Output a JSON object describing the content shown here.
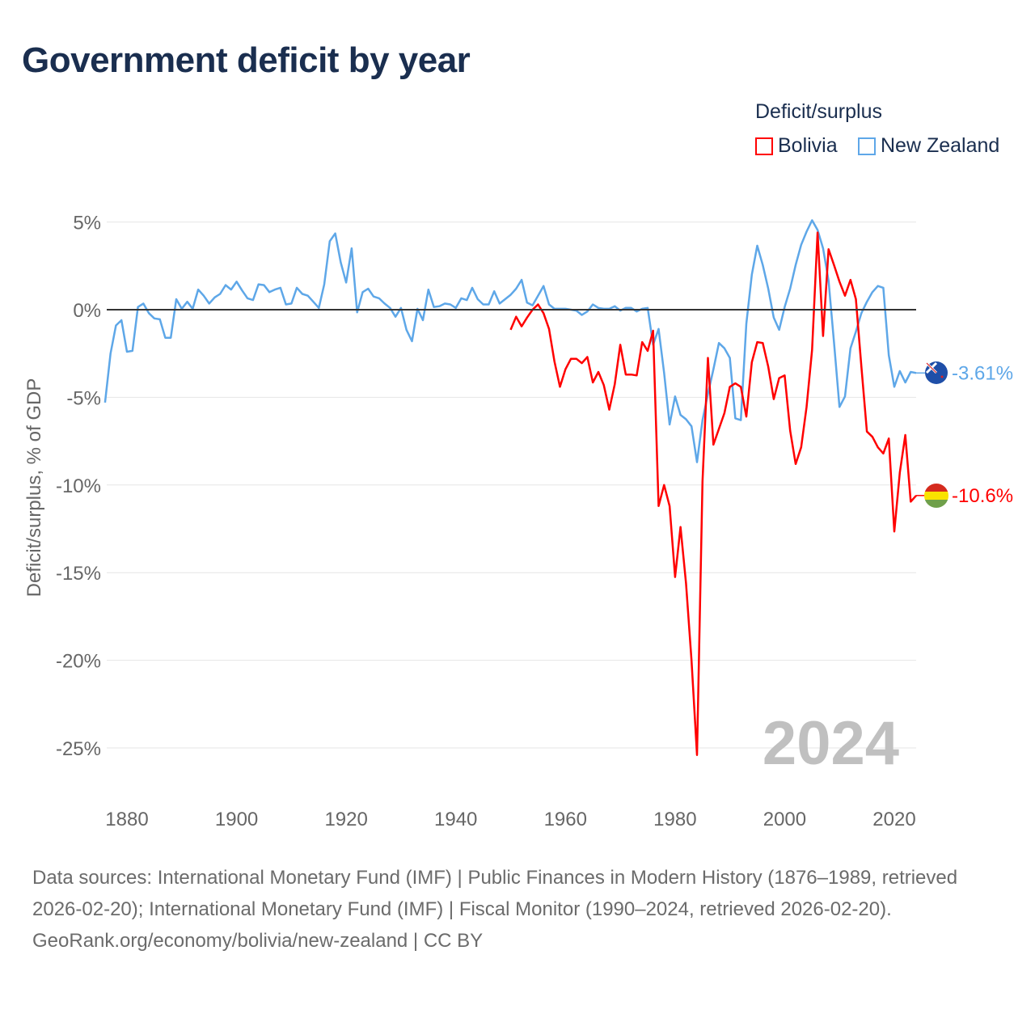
{
  "title": "Government deficit by year",
  "legend": {
    "title": "Deficit/surplus",
    "items": [
      {
        "name": "Bolivia",
        "color": "#ff0000"
      },
      {
        "name": "New Zealand",
        "color": "#5ea7e8"
      }
    ]
  },
  "year_watermark": "2024",
  "footer": {
    "sources": "Data sources: International Monetary Fund (IMF) | Public Finances in Modern History (1876–1989, retrieved 2026-02-20); International Monetary Fund (IMF) | Fiscal Monitor (1990–2024, retrieved 2026-02-20).",
    "credit": "GeoRank.org/economy/bolivia/new-zealand | CC BY"
  },
  "chart_data": {
    "type": "line",
    "title": "Government deficit by year",
    "ylabel": "Deficit/surplus, % of GDP",
    "xlabel": "",
    "xlim": [
      1876,
      2024
    ],
    "ylim": [
      -25,
      5
    ],
    "yticks": [
      5,
      0,
      -5,
      -10,
      -15,
      -20,
      -25
    ],
    "ytick_labels": [
      "5%",
      "0%",
      "-5%",
      "-10%",
      "-15%",
      "-20%",
      "-25%"
    ],
    "xticks": [
      1880,
      1900,
      1920,
      1940,
      1960,
      1980,
      2000,
      2020
    ],
    "xtick_labels": [
      "1880",
      "1900",
      "1920",
      "1940",
      "1960",
      "1980",
      "2000",
      "2020"
    ],
    "grid": true,
    "legend_position": "top-right",
    "series": [
      {
        "name": "New Zealand",
        "color": "#5ea7e8",
        "start_year": 1876,
        "end_label": "-3.61%",
        "values": [
          -5.3,
          -2.5,
          -0.9,
          -0.6,
          -2.4,
          -2.35,
          0.15,
          0.35,
          -0.2,
          -0.5,
          -0.55,
          -1.6,
          -1.6,
          0.6,
          0.05,
          0.45,
          0.05,
          1.15,
          0.8,
          0.35,
          0.7,
          0.9,
          1.4,
          1.15,
          1.6,
          1.1,
          0.65,
          0.55,
          1.45,
          1.4,
          1.0,
          1.15,
          1.25,
          0.3,
          0.35,
          1.25,
          0.9,
          0.8,
          0.45,
          0.1,
          1.45,
          3.9,
          4.35,
          2.7,
          1.55,
          3.5,
          -0.15,
          1.0,
          1.2,
          0.75,
          0.65,
          0.35,
          0.1,
          -0.4,
          0.1,
          -1.15,
          -1.8,
          0.05,
          -0.6,
          1.15,
          0.15,
          0.2,
          0.35,
          0.3,
          0.1,
          0.65,
          0.55,
          1.25,
          0.6,
          0.3,
          0.3,
          1.05,
          0.35,
          0.6,
          0.85,
          1.2,
          1.7,
          0.4,
          0.25,
          0.8,
          1.35,
          0.3,
          0.05,
          0.05,
          0.05,
          0.0,
          -0.05,
          -0.3,
          -0.1,
          0.3,
          0.1,
          0.05,
          0.05,
          0.2,
          -0.05,
          0.1,
          0.1,
          -0.1,
          0.05,
          0.1,
          -2.0,
          -1.1,
          -3.6,
          -6.55,
          -4.95,
          -6.0,
          -6.25,
          -6.65,
          -8.7,
          -6.3,
          -4.8,
          -3.4,
          -1.9,
          -2.2,
          -2.75,
          -6.2,
          -6.3,
          -0.8,
          2.0,
          3.65,
          2.55,
          1.2,
          -0.45,
          -1.15,
          0.15,
          1.2,
          2.55,
          3.7,
          4.45,
          5.1,
          4.55,
          3.5,
          1.65,
          -1.85,
          -5.55,
          -4.95,
          -2.2,
          -1.25,
          -0.2,
          0.45,
          1.0,
          1.35,
          1.25,
          -2.6,
          -4.4,
          -3.5,
          -4.15,
          -3.55,
          -3.61
        ]
      },
      {
        "name": "Bolivia",
        "color": "#ff0000",
        "start_year": 1950,
        "end_label": "-10.6%",
        "values": [
          -1.15,
          -0.4,
          -0.95,
          -0.45,
          0.0,
          0.3,
          -0.2,
          -1.1,
          -2.95,
          -4.4,
          -3.4,
          -2.8,
          -2.8,
          -3.05,
          -2.7,
          -4.15,
          -3.55,
          -4.3,
          -5.7,
          -4.25,
          -2.0,
          -3.7,
          -3.7,
          -3.75,
          -1.85,
          -2.35,
          -1.2,
          -11.2,
          -10.0,
          -11.2,
          -15.25,
          -12.4,
          -15.6,
          -20.0,
          -25.4,
          -9.8,
          -2.75,
          -7.7,
          -6.8,
          -5.9,
          -4.4,
          -4.2,
          -4.4,
          -6.1,
          -3.0,
          -1.85,
          -1.9,
          -3.25,
          -5.1,
          -3.9,
          -3.75,
          -6.9,
          -8.8,
          -7.85,
          -5.55,
          -2.3,
          4.4,
          -1.5,
          3.45,
          2.55,
          1.6,
          0.8,
          1.7,
          0.6,
          -3.25,
          -6.95,
          -7.25,
          -7.85,
          -8.2,
          -7.35,
          -12.65,
          -9.3,
          -7.15,
          -10.95,
          -10.6
        ]
      }
    ]
  }
}
